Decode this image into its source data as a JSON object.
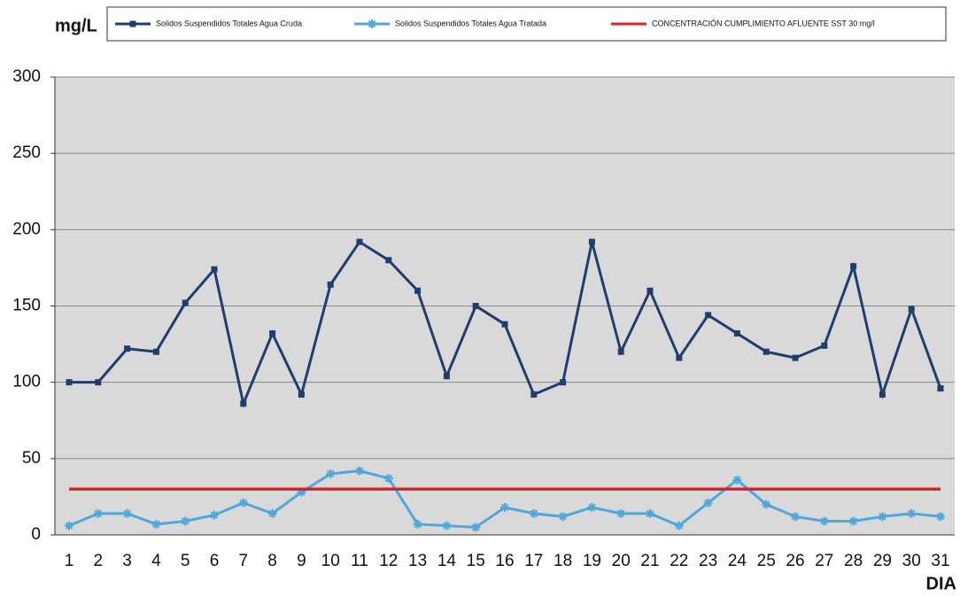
{
  "chart_data": {
    "type": "line",
    "y_label": "mg/L",
    "x_label": "DIA",
    "categories": [
      "1",
      "2",
      "3",
      "4",
      "5",
      "6",
      "7",
      "8",
      "9",
      "10",
      "11",
      "12",
      "13",
      "14",
      "15",
      "16",
      "17",
      "18",
      "19",
      "20",
      "21",
      "22",
      "23",
      "24",
      "25",
      "26",
      "27",
      "28",
      "29",
      "30",
      "31"
    ],
    "series": [
      {
        "name": "Solidos Suspendidos Totales Agua Cruda",
        "color": "#1f3d6e",
        "marker": "square",
        "values": [
          100,
          100,
          122,
          120,
          152,
          174,
          86,
          132,
          92,
          164,
          192,
          180,
          160,
          104,
          150,
          138,
          92,
          100,
          192,
          120,
          160,
          116,
          144,
          132,
          120,
          116,
          124,
          176,
          92,
          148,
          96
        ]
      },
      {
        "name": "Solidos Suspendidos Totales Agua Tratada",
        "color": "#4fa8dc",
        "marker": "star",
        "values": [
          6,
          14,
          14,
          7,
          9,
          13,
          21,
          14,
          28,
          40,
          42,
          37,
          7,
          6,
          5,
          18,
          14,
          12,
          18,
          14,
          14,
          6,
          21,
          36,
          20,
          12,
          9,
          9,
          12,
          14,
          12
        ]
      },
      {
        "name": "CONCENTRACIÓN CUMPLIMIENTO AFLUENTE SST 30 mg/l",
        "color": "#e31e24",
        "marker": "none",
        "values": [
          30,
          30,
          30,
          30,
          30,
          30,
          30,
          30,
          30,
          30,
          30,
          30,
          30,
          30,
          30,
          30,
          30,
          30,
          30,
          30,
          30,
          30,
          30,
          30,
          30,
          30,
          30,
          30,
          30,
          30,
          30
        ]
      }
    ],
    "ylim": [
      0,
      300
    ],
    "yticks": [
      0,
      50,
      100,
      150,
      200,
      250,
      300
    ],
    "grid": true,
    "legend": "top"
  }
}
